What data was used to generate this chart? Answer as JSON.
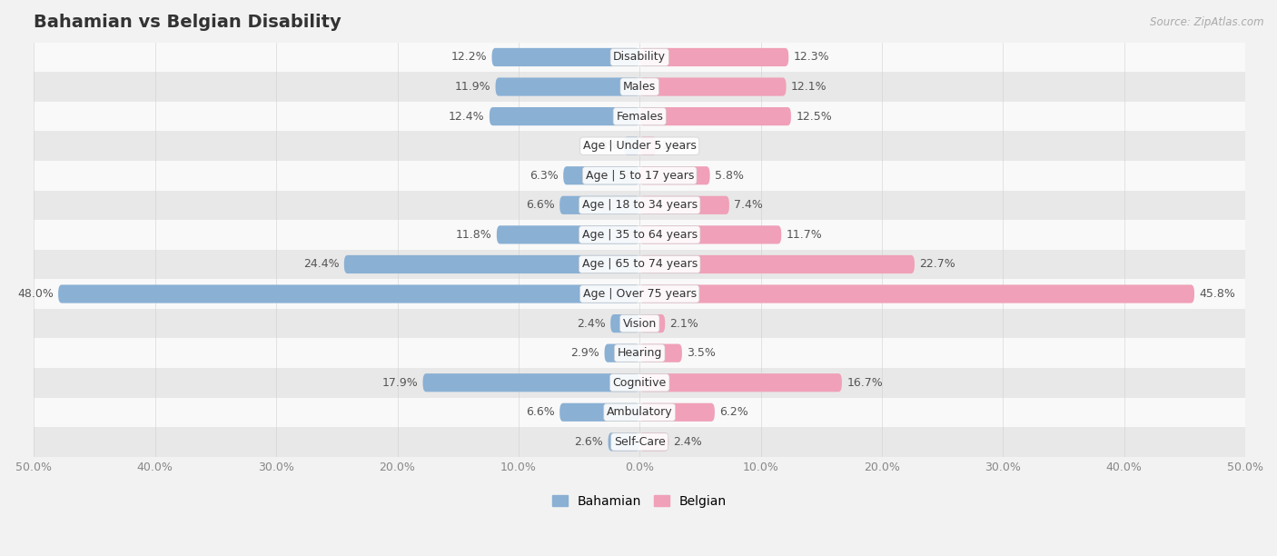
{
  "title": "Bahamian vs Belgian Disability",
  "source": "Source: ZipAtlas.com",
  "categories": [
    "Disability",
    "Males",
    "Females",
    "Age | Under 5 years",
    "Age | 5 to 17 years",
    "Age | 18 to 34 years",
    "Age | 35 to 64 years",
    "Age | 65 to 74 years",
    "Age | Over 75 years",
    "Vision",
    "Hearing",
    "Cognitive",
    "Ambulatory",
    "Self-Care"
  ],
  "bahamian": [
    12.2,
    11.9,
    12.4,
    1.3,
    6.3,
    6.6,
    11.8,
    24.4,
    48.0,
    2.4,
    2.9,
    17.9,
    6.6,
    2.6
  ],
  "belgian": [
    12.3,
    12.1,
    12.5,
    1.4,
    5.8,
    7.4,
    11.7,
    22.7,
    45.8,
    2.1,
    3.5,
    16.7,
    6.2,
    2.4
  ],
  "max_val": 50.0,
  "blue_color": "#8ab0d4",
  "pink_color": "#f0a0b8",
  "blue_dark": "#5b8fc7",
  "pink_dark": "#e8607a",
  "bg_color": "#f2f2f2",
  "row_bg_light": "#f9f9f9",
  "row_bg_dark": "#e8e8e8",
  "bar_height": 0.62,
  "label_fontsize": 9,
  "title_fontsize": 14,
  "tick_fontsize": 9
}
